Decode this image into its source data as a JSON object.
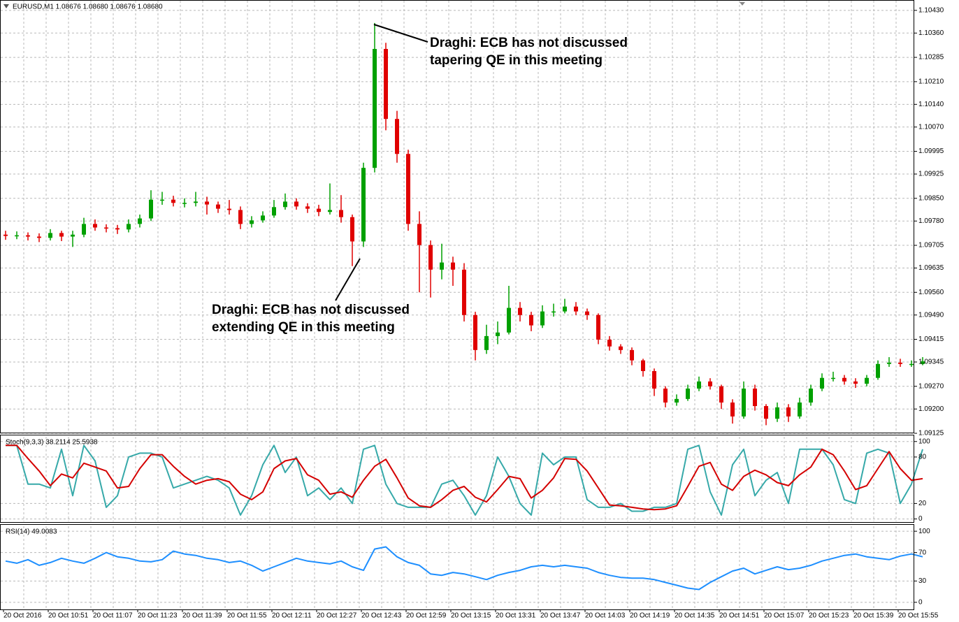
{
  "time_axis": [
    "20 Oct 2016",
    "20 Oct 10:51",
    "20 Oct 11:07",
    "20 Oct 11:23",
    "20 Oct 11:39",
    "20 Oct 11:55",
    "20 Oct 12:11",
    "20 Oct 12:27",
    "20 Oct 12:43",
    "20 Oct 12:59",
    "20 Oct 13:15",
    "20 Oct 13:31",
    "20 Oct 13:47",
    "20 Oct 14:03",
    "20 Oct 14:19",
    "20 Oct 14:35",
    "20 Oct 14:51",
    "20 Oct 15:07",
    "20 Oct 15:23",
    "20 Oct 15:39",
    "20 Oct 15:55"
  ],
  "chart_data": [
    {
      "type": "candlestick",
      "title": "EURUSD,M1  1.08676 1.08680 1.08676 1.08680",
      "up_color": "#00a000",
      "down_color": "#e00000",
      "grid": true,
      "ylim": [
        1.09125,
        1.10462
      ],
      "yticks": [
        {
          "value": 1.1043,
          "label": "1.10430"
        },
        {
          "value": 1.1036,
          "label": "1.10360"
        },
        {
          "value": 1.10285,
          "label": "1.10285"
        },
        {
          "value": 1.1021,
          "label": "1.10210"
        },
        {
          "value": 1.1014,
          "label": "1.10140"
        },
        {
          "value": 1.1007,
          "label": "1.10070"
        },
        {
          "value": 1.09995,
          "label": "1.09995"
        },
        {
          "value": 1.09925,
          "label": "1.09925"
        },
        {
          "value": 1.0985,
          "label": "1.09850"
        },
        {
          "value": 1.0978,
          "label": "1.09780"
        },
        {
          "value": 1.09705,
          "label": "1.09705"
        },
        {
          "value": 1.09635,
          "label": "1.09635"
        },
        {
          "value": 1.0956,
          "label": "1.09560"
        },
        {
          "value": 1.0949,
          "label": "1.09490"
        },
        {
          "value": 1.09415,
          "label": "1.09415"
        },
        {
          "value": 1.09345,
          "label": "1.09345"
        },
        {
          "value": 1.0927,
          "label": "1.09270"
        },
        {
          "value": 1.092,
          "label": "1.09200"
        },
        {
          "value": 1.09125,
          "label": "1.09125"
        }
      ],
      "annotations": [
        [
          "Draghi: ECB has not discussed",
          "tapering QE in this meeting"
        ],
        [
          "Draghi: ECB has not discussed",
          "extending QE in this meeting"
        ]
      ],
      "open": [
        1.09738,
        1.09734,
        1.09736,
        1.09732,
        1.09728,
        1.09743,
        1.09732,
        1.09738,
        1.09771,
        1.0976,
        1.09758,
        1.09754,
        1.09771,
        1.09788,
        1.09846,
        1.09846,
        1.09836,
        1.09836,
        1.0984,
        1.09831,
        1.09818,
        1.09814,
        1.09771,
        1.09782,
        1.09797,
        1.09823,
        1.0984,
        1.09825,
        1.09818,
        1.09808,
        1.09814,
        1.09792,
        1.09717,
        1.09944,
        1.10311,
        1.10095,
        1.09987,
        1.09771,
        1.09706,
        1.0963,
        1.09652,
        1.0963,
        1.0949,
        1.09382,
        1.09425,
        1.09436,
        1.09512,
        1.0949,
        1.09458,
        1.09501,
        1.09501,
        1.09516,
        1.09501,
        1.0949,
        1.09414,
        1.09393,
        1.09382,
        1.0935,
        1.09317,
        1.09263,
        1.0922,
        1.09231,
        1.09263,
        1.09285,
        1.0927,
        1.0922,
        1.09177,
        1.09263,
        1.09209,
        1.0917,
        1.09205,
        1.09177,
        1.0922,
        1.09263,
        1.09296,
        1.09296,
        1.09285,
        1.09278,
        1.09296,
        1.09339,
        1.09343,
        1.09339,
        1.09339
      ],
      "high": [
        1.0975,
        1.09748,
        1.09745,
        1.09742,
        1.09755,
        1.0975,
        1.0975,
        1.0979,
        1.09785,
        1.0977,
        1.09768,
        1.09785,
        1.098,
        1.09875,
        1.0987,
        1.09858,
        1.0985,
        1.0987,
        1.09855,
        1.0984,
        1.09845,
        1.09825,
        1.09795,
        1.0981,
        1.09845,
        1.09865,
        1.0985,
        1.09835,
        1.0983,
        1.09896,
        1.0986,
        1.098,
        1.0996,
        1.10391,
        1.1033,
        1.1012,
        1.1,
        1.0981,
        1.0972,
        1.0971,
        1.0967,
        1.0965,
        1.095,
        1.0946,
        1.0947,
        1.0958,
        1.0953,
        1.095,
        1.0952,
        1.09525,
        1.0954,
        1.0953,
        1.0951,
        1.09495,
        1.09425,
        1.094,
        1.0939,
        1.09355,
        1.09325,
        1.0927,
        1.09245,
        1.09275,
        1.093,
        1.09295,
        1.09275,
        1.0923,
        1.09285,
        1.09275,
        1.09215,
        1.0922,
        1.09215,
        1.09235,
        1.09275,
        1.0931,
        1.09315,
        1.09305,
        1.09295,
        1.09305,
        1.0935,
        1.0936,
        1.09355,
        1.0935,
        1.0936
      ],
      "low": [
        1.09722,
        1.09724,
        1.0972,
        1.09715,
        1.0972,
        1.09718,
        1.097,
        1.0973,
        1.0975,
        1.09745,
        1.0974,
        1.09745,
        1.0976,
        1.0978,
        1.0983,
        1.09825,
        1.09822,
        1.09825,
        1.098,
        1.09805,
        1.098,
        1.09755,
        1.0976,
        1.09775,
        1.0979,
        1.09815,
        1.09815,
        1.09805,
        1.09795,
        1.098,
        1.09775,
        1.09641,
        1.097,
        1.0993,
        1.1006,
        1.0996,
        1.0975,
        1.0956,
        1.09544,
        1.096,
        1.0958,
        1.0947,
        1.0935,
        1.0937,
        1.094,
        1.0943,
        1.0947,
        1.0944,
        1.0945,
        1.09485,
        1.09495,
        1.0949,
        1.09475,
        1.094,
        1.0938,
        1.0937,
        1.09335,
        1.093,
        1.0924,
        1.09205,
        1.0921,
        1.09225,
        1.09255,
        1.0926,
        1.092,
        1.09155,
        1.0917,
        1.09195,
        1.0915,
        1.0916,
        1.0916,
        1.0917,
        1.0921,
        1.09255,
        1.09285,
        1.09275,
        1.09265,
        1.0927,
        1.0929,
        1.0933,
        1.0933,
        1.0933,
        1.09335
      ],
      "close": [
        1.09734,
        1.09736,
        1.09732,
        1.09728,
        1.09743,
        1.09732,
        1.09738,
        1.09771,
        1.0976,
        1.09758,
        1.09754,
        1.09771,
        1.09788,
        1.09846,
        1.09846,
        1.09836,
        1.09836,
        1.0984,
        1.09831,
        1.09818,
        1.09814,
        1.09771,
        1.09782,
        1.09797,
        1.09823,
        1.0984,
        1.09825,
        1.09818,
        1.09808,
        1.09814,
        1.09792,
        1.09717,
        1.09944,
        1.10311,
        1.10095,
        1.09987,
        1.09771,
        1.09706,
        1.0963,
        1.09652,
        1.0963,
        1.0949,
        1.09382,
        1.09425,
        1.09436,
        1.09512,
        1.0949,
        1.09458,
        1.09501,
        1.09501,
        1.09516,
        1.09501,
        1.0949,
        1.09414,
        1.09393,
        1.09382,
        1.0935,
        1.09317,
        1.09263,
        1.0922,
        1.09231,
        1.09263,
        1.09285,
        1.0927,
        1.0922,
        1.09177,
        1.09263,
        1.09209,
        1.0917,
        1.09205,
        1.09177,
        1.0922,
        1.09263,
        1.09296,
        1.09296,
        1.09285,
        1.09278,
        1.09296,
        1.09339,
        1.09343,
        1.09339,
        1.09339,
        1.09347
      ]
    },
    {
      "type": "line",
      "title": "Stoch(9,3,3) 38.2114 25.5938",
      "ylim": [
        -4,
        107
      ],
      "yticks": [
        100,
        80,
        20,
        0
      ],
      "series": [
        {
          "color": "#36a9a9",
          "values": [
            95,
            95,
            45,
            45,
            40,
            90,
            30,
            95,
            75,
            15,
            30,
            80,
            85,
            85,
            80,
            40,
            45,
            50,
            55,
            50,
            40,
            5,
            30,
            70,
            95,
            60,
            80,
            30,
            40,
            25,
            40,
            20,
            90,
            95,
            45,
            20,
            15,
            15,
            15,
            45,
            50,
            30,
            5,
            30,
            80,
            55,
            20,
            5,
            85,
            70,
            80,
            80,
            25,
            15,
            15,
            20,
            10,
            10,
            15,
            15,
            20,
            90,
            95,
            35,
            5,
            70,
            90,
            30,
            50,
            60,
            20,
            90,
            90,
            90,
            70,
            25,
            20,
            85,
            90,
            85,
            20,
            45,
            90
          ]
        },
        {
          "color": "#d40000",
          "values": [
            95,
            95,
            78,
            62,
            43,
            58,
            53,
            72,
            67,
            62,
            40,
            42,
            65,
            83,
            83,
            68,
            55,
            45,
            50,
            52,
            48,
            32,
            25,
            35,
            65,
            75,
            78,
            57,
            50,
            32,
            35,
            28,
            50,
            68,
            77,
            53,
            27,
            17,
            15,
            25,
            37,
            42,
            28,
            22,
            38,
            55,
            52,
            27,
            37,
            53,
            78,
            77,
            62,
            40,
            18,
            17,
            15,
            13,
            12,
            13,
            17,
            42,
            68,
            73,
            45,
            37,
            55,
            63,
            57,
            47,
            43,
            57,
            67,
            90,
            83,
            62,
            38,
            43,
            65,
            87,
            65,
            50,
            52
          ]
        }
      ]
    },
    {
      "type": "line",
      "title": "RSI(14) 49.0083",
      "ylim": [
        -10,
        108
      ],
      "yticks": [
        100,
        70,
        30,
        0
      ],
      "series": [
        {
          "color": "#1e8fff",
          "values": [
            58,
            55,
            60,
            52,
            56,
            62,
            58,
            55,
            62,
            70,
            64,
            62,
            58,
            57,
            60,
            72,
            68,
            66,
            62,
            60,
            56,
            58,
            52,
            44,
            50,
            56,
            62,
            58,
            56,
            54,
            58,
            50,
            45,
            75,
            78,
            64,
            56,
            52,
            40,
            38,
            42,
            40,
            36,
            32,
            38,
            42,
            45,
            50,
            52,
            50,
            52,
            50,
            48,
            42,
            38,
            35,
            34,
            34,
            32,
            28,
            24,
            20,
            18,
            28,
            36,
            44,
            48,
            40,
            45,
            50,
            46,
            48,
            52,
            58,
            62,
            66,
            68,
            64,
            62,
            60,
            65,
            68,
            64
          ]
        }
      ]
    }
  ]
}
